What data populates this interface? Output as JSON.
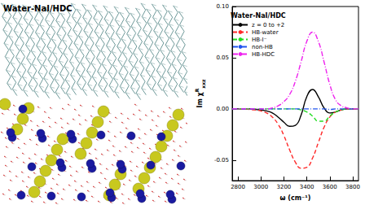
{
  "panel_label": "Water-NaI/HDC",
  "chart_data": {
    "type": "line",
    "title": "Water-NaI/HDC",
    "xlabel": "ω (cm⁻¹)",
    "ylabel": {
      "base": "Im χ",
      "sup": "R",
      "sub": "xxz"
    },
    "xlim": [
      2750,
      3850
    ],
    "xticks": [
      2800,
      3000,
      3200,
      3400,
      3600,
      3800
    ],
    "ylim": [
      -0.07,
      0.1
    ],
    "yticks": [
      {
        "value": -0.05,
        "label": "-0.05"
      },
      {
        "value": 0,
        "label": "0.00"
      },
      {
        "value": 0.05,
        "label": "0.05"
      },
      {
        "value": 0.1,
        "label": "0.10"
      }
    ],
    "grid": false,
    "legend": "upper left",
    "x": [
      2750,
      2800,
      2850,
      2900,
      2950,
      3000,
      3050,
      3100,
      3150,
      3200,
      3250,
      3300,
      3350,
      3400,
      3450,
      3500,
      3550,
      3600,
      3650,
      3700,
      3750,
      3800,
      3850
    ],
    "series": [
      {
        "name": "z = 0 to +2",
        "color": "#000000",
        "line_style": "solid",
        "values": [
          0,
          0,
          0,
          0,
          -0.0005,
          -0.001,
          -0.002,
          -0.004,
          -0.008,
          -0.013,
          -0.017,
          -0.016,
          -0.006,
          0.012,
          0.019,
          0.012,
          0.001,
          -0.004,
          -0.003,
          -0.001,
          0,
          0,
          0
        ]
      },
      {
        "name": "HB-water",
        "color": "#ff2a2a",
        "line_style": "dashed",
        "values": [
          0,
          0,
          0,
          -0.0005,
          -0.001,
          -0.002,
          -0.004,
          -0.008,
          -0.015,
          -0.026,
          -0.04,
          -0.052,
          -0.058,
          -0.057,
          -0.048,
          -0.033,
          -0.018,
          -0.008,
          -0.003,
          -0.001,
          0,
          0,
          0
        ]
      },
      {
        "name": "HB-I⁻",
        "color": "#22dd22",
        "line_style": "dashed",
        "values": [
          0,
          0,
          0,
          0,
          0,
          0,
          0,
          0,
          0,
          0,
          0,
          0,
          -0.001,
          -0.003,
          -0.007,
          -0.012,
          -0.012,
          -0.007,
          -0.003,
          -0.001,
          0,
          0,
          0
        ]
      },
      {
        "name": "non-HB",
        "color": "#2255ee",
        "line_style": "dashdot",
        "values": [
          0,
          0,
          0,
          0,
          0,
          0,
          0,
          0,
          0,
          0,
          0,
          0,
          0,
          0,
          0,
          0,
          0,
          -0.0005,
          0,
          0,
          0,
          0,
          0
        ]
      },
      {
        "name": "HB-HDC",
        "color": "#ee22ee",
        "line_style": "dashdot",
        "values": [
          0,
          0,
          0,
          0,
          0,
          0,
          0,
          0.001,
          0.003,
          0.007,
          0.014,
          0.027,
          0.046,
          0.066,
          0.075,
          0.066,
          0.046,
          0.024,
          0.009,
          0.003,
          0.001,
          0,
          0
        ]
      }
    ]
  }
}
